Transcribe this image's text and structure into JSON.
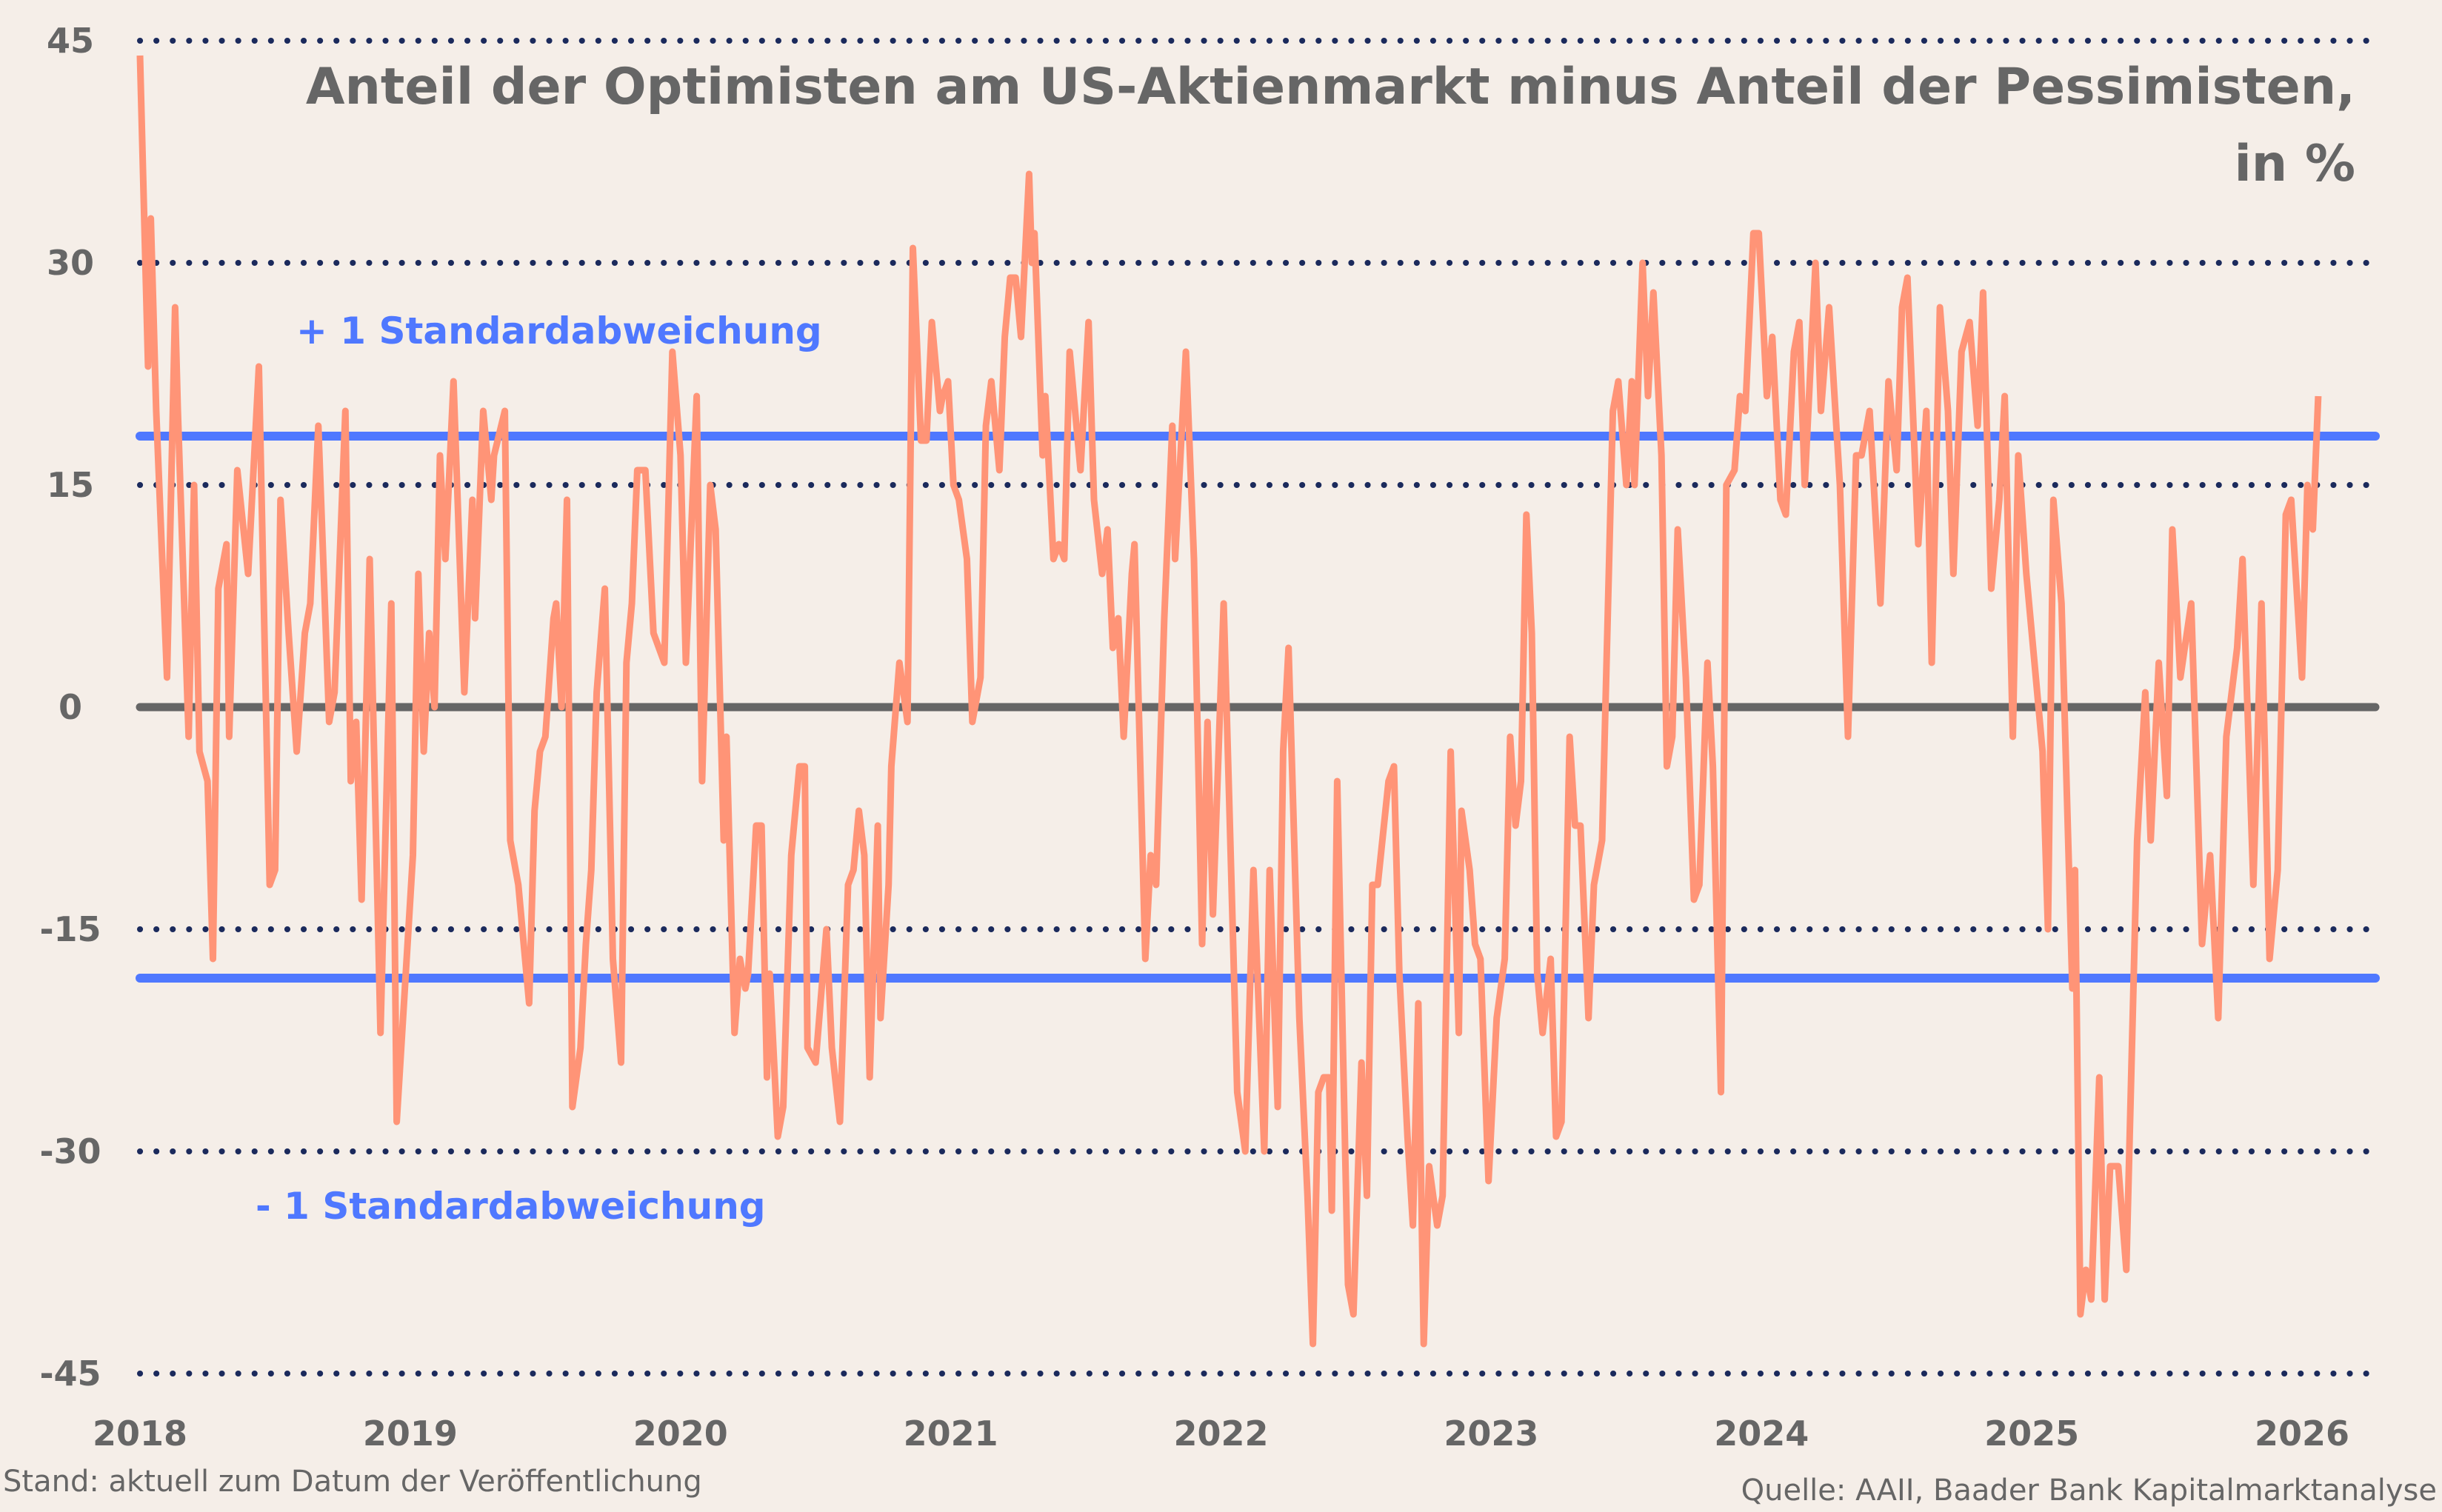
{
  "chart_data": {
    "type": "line",
    "title_line1": "Anteil der Optimisten am US-Aktienmarkt minus Anteil der Pessimisten,",
    "title_line2": "in %",
    "xlabel": "",
    "ylabel": "",
    "ylim": [
      -45,
      45
    ],
    "xlim": [
      2018,
      2026.3
    ],
    "y_ticks": [
      "45",
      "30",
      "15",
      "0",
      "-15",
      "-30",
      "-45"
    ],
    "x_ticks": [
      "2018",
      "2019",
      "2020",
      "2021",
      "2022",
      "2023",
      "2024",
      "2025",
      "2026"
    ],
    "grid": "horizontal dotted",
    "reference_lines": [
      {
        "label": "+ 1 Standardabweichung",
        "value": 18.3
      },
      {
        "label": "- 1 Standardabweichung",
        "value": -18.3
      },
      {
        "label": "",
        "value": 0
      }
    ],
    "colors": {
      "series": "#ff9477",
      "std_lines": "#4f78ff",
      "zero_line": "#666666",
      "grid": "#1b2a5c",
      "background": "#f5eee8"
    },
    "series": [
      {
        "x": [
          2018.0,
          2018.03,
          2018.04,
          2018.06,
          2018.1,
          2018.13,
          2018.14,
          2018.18,
          2018.2,
          2018.22,
          2018.25,
          2018.27,
          2018.29,
          2018.32,
          2018.33,
          2018.36,
          2018.4,
          2018.44,
          2018.48,
          2018.5,
          2018.52,
          2018.55,
          2018.58,
          2018.61,
          2018.63,
          2018.66,
          2018.7,
          2018.72,
          2018.76,
          2018.78,
          2018.8,
          2018.82,
          2018.85,
          2018.89,
          2018.93,
          2018.95,
          2018.98,
          2019.01,
          2019.03,
          2019.05,
          2019.07,
          2019.09,
          2019.11,
          2019.13,
          2019.16,
          2019.2,
          2019.23,
          2019.24,
          2019.27,
          2019.3,
          2019.31,
          2019.35,
          2019.37,
          2019.4,
          2019.44,
          2019.46,
          2019.48,
          2019.5,
          2019.53,
          2019.54,
          2019.56,
          2019.58,
          2019.6,
          2019.63,
          2019.65,
          2019.67,
          2019.69,
          2019.72,
          2019.75,
          2019.78,
          2019.8,
          2019.82,
          2019.84,
          2019.87,
          2019.9,
          2019.94,
          2019.97,
          2020.0,
          2020.02,
          2020.06,
          2020.08,
          2020.11,
          2020.13,
          2020.16,
          2020.17,
          2020.2,
          2020.22,
          2020.24,
          2020.25,
          2020.28,
          2020.3,
          2020.32,
          2020.33,
          2020.36,
          2020.38,
          2020.41,
          2020.44,
          2020.46,
          2020.47,
          2020.5,
          2020.54,
          2020.56,
          2020.59,
          2020.62,
          2020.64,
          2020.66,
          2020.68,
          2020.7,
          2020.73,
          2020.74,
          2020.77,
          2020.78,
          2020.81,
          2020.84,
          2020.86,
          2020.89,
          2020.91,
          2020.93,
          2020.96,
          2020.97,
          2020.99,
          2021.01,
          2021.03,
          2021.06,
          2021.08,
          2021.11,
          2021.13,
          2021.15,
          2021.18,
          2021.2,
          2021.22,
          2021.24,
          2021.26,
          2021.29,
          2021.3,
          2021.31,
          2021.34,
          2021.35,
          2021.38,
          2021.4,
          2021.42,
          2021.44,
          2021.46,
          2021.48,
          2021.51,
          2021.53,
          2021.56,
          2021.58,
          2021.6,
          2021.62,
          2021.64,
          2021.67,
          2021.68,
          2021.72,
          2021.74,
          2021.76,
          2021.79,
          2021.82,
          2021.83,
          2021.87,
          2021.9,
          2021.93,
          2021.95,
          2021.97,
          2022.01,
          2022.03,
          2022.06,
          2022.09,
          2022.12,
          2022.16,
          2022.18,
          2022.21,
          2022.23,
          2022.25,
          2022.29,
          2022.32,
          2022.34,
          2022.36,
          2022.38,
          2022.4,
          2022.41,
          2022.43,
          2022.47,
          2022.49,
          2022.52,
          2022.54,
          2022.56,
          2022.58,
          2022.62,
          2022.64,
          2022.66,
          2022.69,
          2022.71,
          2022.73,
          2022.75,
          2022.77,
          2022.8,
          2022.82,
          2022.85,
          2022.88,
          2022.89,
          2022.92,
          2022.94,
          2022.96,
          2022.99,
          2023.02,
          2023.05,
          2023.07,
          2023.09,
          2023.11,
          2023.13,
          2023.15,
          2023.17,
          2023.19,
          2023.22,
          2023.24,
          2023.26,
          2023.29,
          2023.31,
          2023.33,
          2023.36,
          2023.38,
          2023.41,
          2023.45,
          2023.47,
          2023.5,
          2023.52,
          2023.53,
          2023.56,
          2023.58,
          2023.6,
          2023.63,
          2023.65,
          2023.67,
          2023.69,
          2023.72,
          2023.75,
          2023.77,
          2023.8,
          2023.82,
          2023.85,
          2023.87,
          2023.9,
          2023.92,
          2023.94,
          2023.97,
          2023.99,
          2024.02,
          2024.04,
          2024.07,
          2024.09,
          2024.12,
          2024.14,
          2024.16,
          2024.2,
          2024.22,
          2024.25,
          2024.29,
          2024.32,
          2024.35,
          2024.37,
          2024.4,
          2024.44,
          2024.47,
          2024.5,
          2024.52,
          2024.54,
          2024.58,
          2024.61,
          2024.63,
          2024.66,
          2024.69,
          2024.71,
          2024.74,
          2024.77,
          2024.8,
          2024.82,
          2024.85,
          2024.88,
          2024.9,
          2024.93,
          2024.95,
          2024.98,
          2025.01,
          2025.04,
          2025.06,
          2025.08,
          2025.11,
          2025.15,
          2025.16,
          2025.18,
          2025.2,
          2025.22,
          2025.25,
          2025.27,
          2025.29,
          2025.32,
          2025.35,
          2025.39,
          2025.42,
          2025.44,
          2025.47,
          2025.5,
          2025.52,
          2025.55,
          2025.59,
          2025.63,
          2025.66,
          2025.69,
          2025.72,
          2025.76,
          2025.78,
          2025.82,
          2025.85,
          2025.88,
          2025.91,
          2025.94,
          2025.96,
          2026.0,
          2026.02,
          2026.04,
          2026.06
        ],
        "y": [
          44,
          23,
          33,
          20,
          2,
          27,
          20,
          -2,
          15,
          -3,
          -5,
          -17,
          8,
          11,
          -2,
          16,
          9,
          23,
          -12,
          -11,
          14,
          5,
          -3,
          5,
          7,
          19,
          -1,
          1,
          20,
          -5,
          -1,
          -13,
          10,
          -22,
          7,
          -28,
          -19,
          -10,
          9,
          -3,
          5,
          0,
          17,
          10,
          22,
          1,
          14,
          6,
          20,
          14,
          17,
          20,
          -9,
          -12,
          -20,
          -7,
          -3,
          -2,
          6,
          7,
          0,
          14,
          -27,
          -23,
          -16,
          -11,
          1,
          8,
          -17,
          -24,
          3,
          7,
          16,
          16,
          5,
          3,
          24,
          17,
          3,
          21,
          -5,
          15,
          12,
          -9,
          -2,
          -22,
          -17,
          -19,
          -18,
          -8,
          -8,
          -25,
          -18,
          -29,
          -27,
          -10,
          -4,
          -4,
          -23,
          -24,
          -15,
          -23,
          -28,
          -12,
          -11,
          -7,
          -10,
          -25,
          -8,
          -21,
          -12,
          -4,
          3,
          -1,
          31,
          18,
          18,
          26,
          20,
          21,
          22,
          15,
          14,
          10,
          -1,
          2,
          19,
          22,
          16,
          25,
          29,
          29,
          25,
          36,
          30,
          32,
          17,
          21,
          10,
          11,
          10,
          24,
          20,
          16,
          26,
          14,
          9,
          12,
          4,
          6,
          -2,
          9,
          11,
          -17,
          -10,
          -12,
          6,
          19,
          10,
          24,
          10,
          -16,
          -1,
          -14,
          7,
          -6,
          -26,
          -30,
          -11,
          -30,
          -11,
          -27,
          -3,
          4,
          -21,
          -33,
          -43,
          -26,
          -25,
          -25,
          -34,
          -5,
          -39,
          -41,
          -24,
          -33,
          -12,
          -12,
          -5,
          -4,
          -18,
          -29,
          -35,
          -20,
          -43,
          -31,
          -35,
          -33,
          -3,
          -22,
          -7,
          -11,
          -16,
          -17,
          -32,
          -21,
          -17,
          -2,
          -8,
          -5,
          13,
          5,
          -18,
          -22,
          -17,
          -29,
          -28,
          -2,
          -8,
          -8,
          -21,
          -12,
          -9,
          20,
          22,
          15,
          22,
          15,
          30,
          21,
          28,
          17,
          -4,
          -2,
          12,
          2,
          -13,
          -12,
          3,
          -4,
          -26,
          15,
          16,
          21,
          20,
          32,
          32,
          21,
          25,
          14,
          13,
          24,
          26,
          15,
          30,
          20,
          27,
          15,
          -2,
          17,
          17,
          20,
          7,
          22,
          16,
          27,
          29,
          11,
          20,
          3,
          27,
          20,
          9,
          24,
          26,
          19,
          28,
          8,
          14,
          21,
          -2,
          17,
          9,
          3,
          -3,
          -15,
          14,
          7,
          -19,
          -11,
          -41,
          -38,
          -40,
          -25,
          -40,
          -31,
          -31,
          -38,
          -9,
          1,
          -9,
          3,
          -6,
          12,
          2,
          7,
          -16,
          -10,
          -21,
          -2,
          4,
          10,
          -12,
          7,
          -17,
          -11,
          13,
          14,
          2,
          15,
          12,
          21
        ]
      }
    ]
  },
  "footer": {
    "left": "Stand: aktuell zum Datum der Veröffentlichung",
    "right": "Quelle: AAII, Baader Bank Kapitalmarktanalyse"
  }
}
